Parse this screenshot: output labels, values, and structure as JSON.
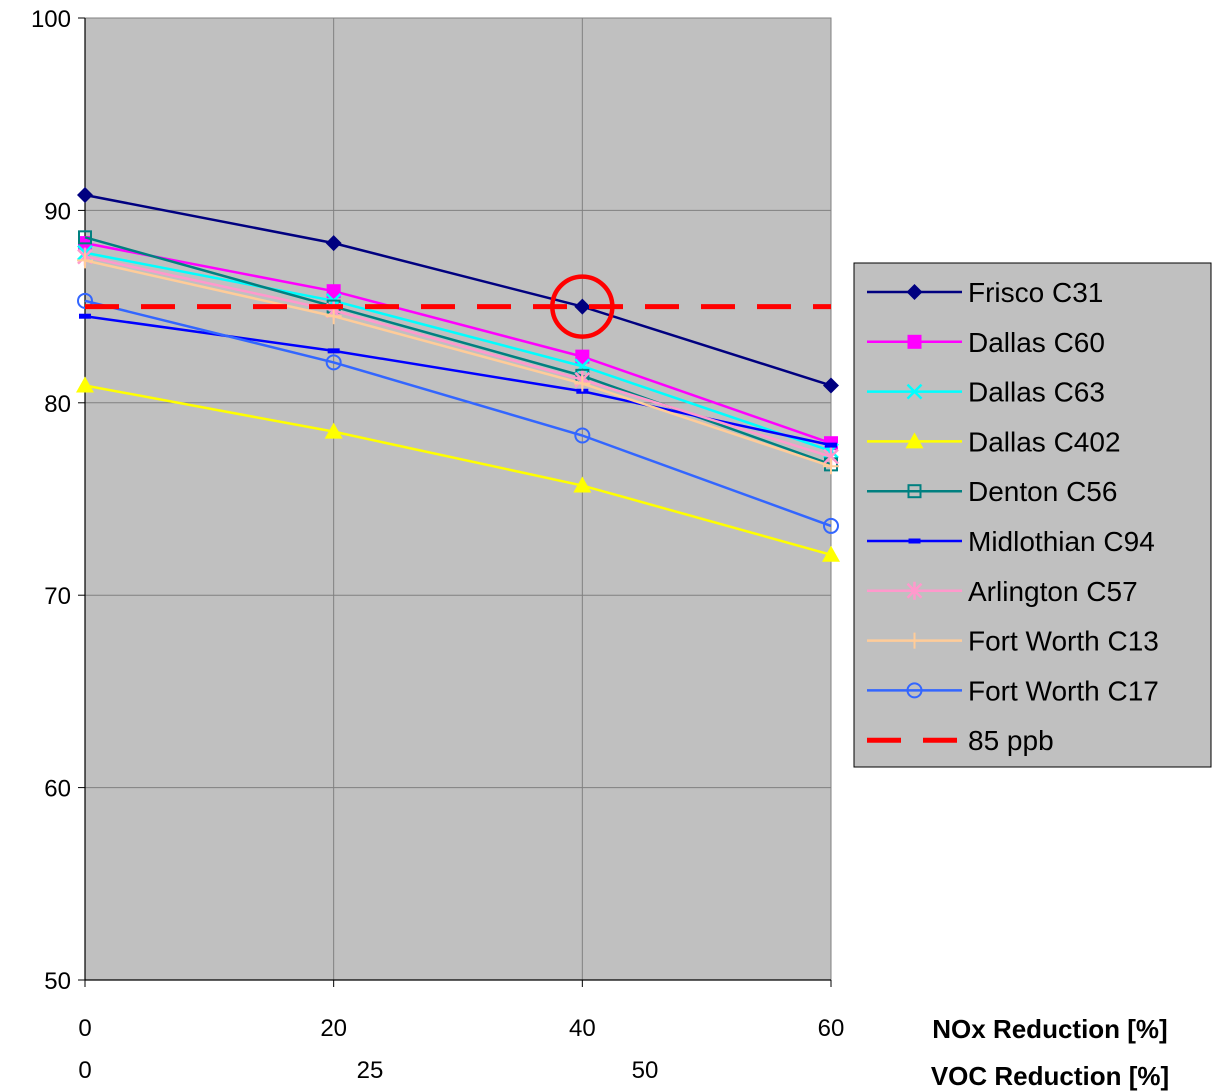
{
  "chart_data": {
    "type": "line",
    "x": [
      0,
      20,
      40,
      60
    ],
    "x_secondary_ticks": [
      "0",
      "25",
      "50"
    ],
    "xlabel": "NOx Reduction [%]",
    "xlabel_secondary": "VOC Reduction [%]",
    "ylabel": "",
    "ylim": [
      50,
      100
    ],
    "xlim": [
      0,
      60
    ],
    "yticks": [
      50,
      60,
      70,
      80,
      90,
      100
    ],
    "grid": true,
    "plot_background": "#c0c0c0",
    "legend_position": "right",
    "series": [
      {
        "name": "Frisco C31",
        "values": [
          90.8,
          88.3,
          85.0,
          80.9
        ],
        "color": "#000080",
        "marker": "diamond"
      },
      {
        "name": "Dallas C60",
        "values": [
          88.3,
          85.8,
          82.4,
          77.9
        ],
        "color": "#ff00ff",
        "marker": "square"
      },
      {
        "name": "Dallas C63",
        "values": [
          87.8,
          85.3,
          81.9,
          77.5
        ],
        "color": "#00ffff",
        "marker": "x"
      },
      {
        "name": "Dallas C402",
        "values": [
          80.9,
          78.5,
          75.7,
          72.1
        ],
        "color": "#ffff00",
        "marker": "triangle"
      },
      {
        "name": "Denton C56",
        "values": [
          88.6,
          85.0,
          81.4,
          76.8
        ],
        "color": "#008080",
        "marker": "square-open"
      },
      {
        "name": "Midlothian C94",
        "values": [
          84.5,
          82.7,
          80.6,
          77.8
        ],
        "color": "#0000ff",
        "marker": "dash"
      },
      {
        "name": "Arlington C57",
        "values": [
          87.6,
          84.8,
          81.2,
          77.2
        ],
        "color": "#ff99cc",
        "marker": "star"
      },
      {
        "name": "Fort Worth C13",
        "values": [
          87.4,
          84.5,
          81.0,
          76.7
        ],
        "color": "#ffcc99",
        "marker": "plus"
      },
      {
        "name": "Fort Worth C17",
        "values": [
          85.3,
          82.1,
          78.3,
          73.6
        ],
        "color": "#3366ff",
        "marker": "circle-open"
      },
      {
        "name": "85 ppb",
        "values": [
          85,
          85,
          85,
          85
        ],
        "color": "#ff0000",
        "marker": "none",
        "dashed": true
      }
    ],
    "annotations": [
      {
        "type": "circle",
        "x": 40,
        "y": 85.0,
        "color": "#ff0000"
      }
    ]
  }
}
